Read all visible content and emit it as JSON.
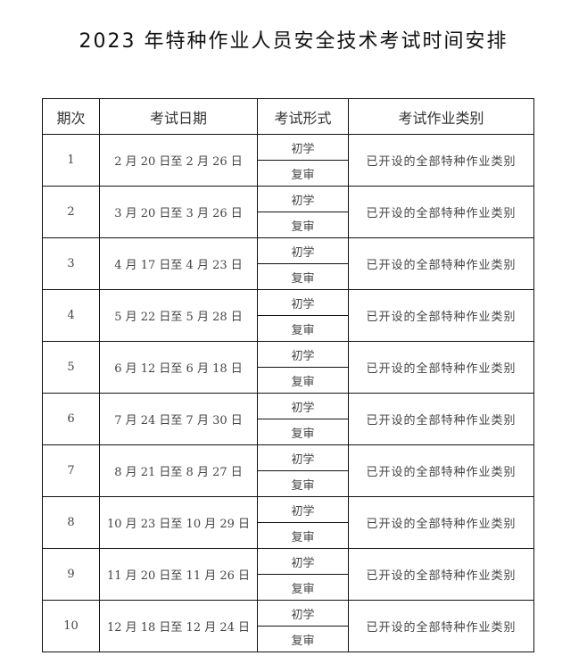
{
  "title": "2023 年特种作业人员安全技术考试时间安排",
  "headers": [
    "期次",
    "考试日期",
    "考试形式",
    "考试作业类别"
  ],
  "rows": [
    {
      "period": "1",
      "date": "2 月 20 日至 2 月 26 日",
      "forms": [
        "初学",
        "复审"
      ],
      "category": "已开设的全部特种作业类别"
    },
    {
      "period": "2",
      "date": "3 月 20 日至 3 月 26 日",
      "forms": [
        "初学",
        "复审"
      ],
      "category": "已开设的全部特种作业类别"
    },
    {
      "period": "3",
      "date": "4 月 17 日至 4 月 23 日",
      "forms": [
        "初学",
        "复审"
      ],
      "category": "已开设的全部特种作业类别"
    },
    {
      "period": "4",
      "date": "5 月 22 日至 5 月 28 日",
      "forms": [
        "初学",
        "复审"
      ],
      "category": "已开设的全部特种作业类别"
    },
    {
      "period": "5",
      "date": "6 月 12 日至 6 月 18 日",
      "forms": [
        "初学",
        "复审"
      ],
      "category": "已开设的全部特种作业类别"
    },
    {
      "period": "6",
      "date": "7 月 24 日至 7 月 30 日",
      "forms": [
        "初学",
        "复审"
      ],
      "category": "已开设的全部特种作业类别"
    },
    {
      "period": "7",
      "date": "8 月 21 日至 8 月 27 日",
      "forms": [
        "初学",
        "复审"
      ],
      "category": "已开设的全部特种作业类别"
    },
    {
      "period": "8",
      "date": "10 月 23 日至 10 月 29 日",
      "forms": [
        "初学",
        "复审"
      ],
      "category": "已开设的全部特种作业类别"
    },
    {
      "period": "9",
      "date": "11 月 20 日至 11 月 26 日",
      "forms": [
        "初学",
        "复审"
      ],
      "category": "已开设的全部特种作业类别"
    },
    {
      "period": "10",
      "date": "12 月 18 日至 12 月 24 日",
      "forms": [
        "初学",
        "复审"
      ],
      "category": "已开设的全部特种作业类别"
    }
  ]
}
